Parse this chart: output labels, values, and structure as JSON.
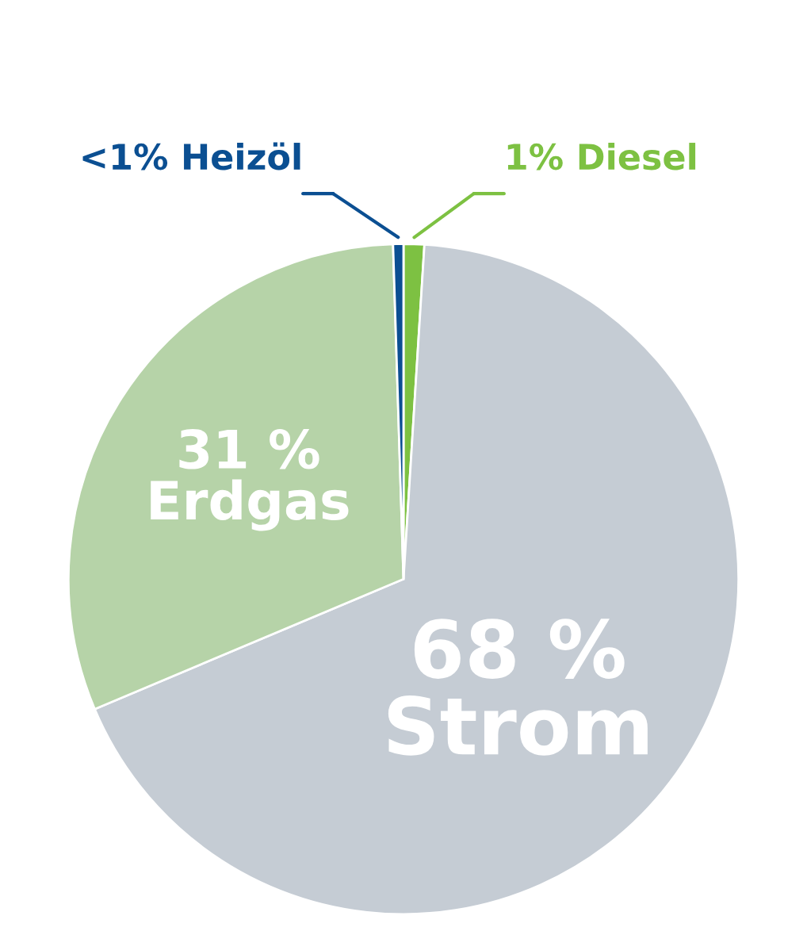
{
  "chart_data": {
    "type": "pie",
    "categories": [
      "Diesel",
      "Strom",
      "Erdgas",
      "Heizöl"
    ],
    "values": [
      1,
      68,
      31,
      0.5
    ],
    "value_labels": [
      "1%",
      "68 %",
      "31 %",
      "<1%"
    ],
    "colors": [
      "#7dc142",
      "#c5ccd4",
      "#b6d3a8",
      "#0b4f92"
    ],
    "legend": false
  }
}
